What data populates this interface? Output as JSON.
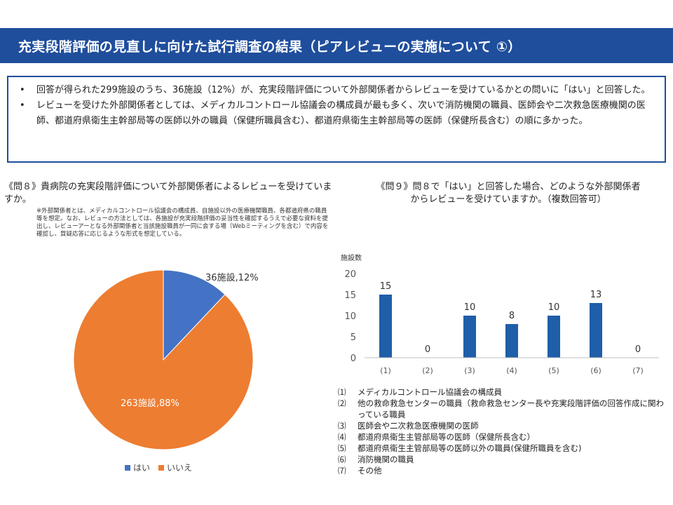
{
  "header": {
    "title": "充実段階評価の見直しに向けた試行調査の結果（ピアレビューの実施について ①）"
  },
  "summary": {
    "bullet": "•",
    "items": [
      "回答が得られた299施設のうち、36施設（12%）が、充実段階評価について外部関係者からレビューを受けているかとの問いに「はい」と回答した。",
      "レビューを受けた外部関係者としては、メディカルコントロール協議会の構成員が最も多く、次いで消防機関の職員、医師会や二次救急医療機関の医師、都道府県衛生主幹部局等の医師以外の職員（保健所職員含む）、都道府県衛生主幹部局等の医師（保健所長含む）の順に多かった。"
    ]
  },
  "q8": {
    "title": "《問８》貴病院の充実段階評価について外部関係者によるレビューを受けていますか。",
    "note": "※外部関係者とは、メディカルコントロール協議会の構成員、自施設以外の医療機関職員、各都道府県の職員等を想定。なお、レビューの方法としては、各施設が充実段階評価の妥当性を確認するうえで必要な資料を提出し、レビューアーとなる外部関係者と当該施設職員が一同に会する場（Webミーティングを含む）で内容を確認し、質疑応答に応じるような形式を想定している。"
  },
  "q9": {
    "title_line1": "《問９》問８で「はい」と回答した場合、どのような外部関係者",
    "title_line2": "からレビューを受けていますか。（複数回答可）",
    "legend": [
      {
        "num": "⑴",
        "text": "メディカルコントロール協議会の構成員"
      },
      {
        "num": "⑵",
        "text": "他の救命救急センターの職員（救命救急センター長や充実段階評価の回答作成に関わっている職員"
      },
      {
        "num": "⑶",
        "text": "医師会や二次救急医療機関の医師"
      },
      {
        "num": "⑷",
        "text": "都道府県衛生主管部局等の医師（保健所長含む）"
      },
      {
        "num": "⑸",
        "text": "都道府県衛生主管部局等の医師以外の職員(保健所職員を含む)"
      },
      {
        "num": "⑹",
        "text": "消防機関の職員"
      },
      {
        "num": "⑺",
        "text": "その他"
      }
    ]
  },
  "colors": {
    "header_bg": "#1f4e9c",
    "blue": "#4472c4",
    "orange": "#ed7d31",
    "bar": "#1f5ea8"
  },
  "chart_data": [
    {
      "type": "pie",
      "title": "",
      "slices": [
        {
          "label": "はい",
          "value": 36,
          "percent": 12,
          "data_label": "36施設,12%"
        },
        {
          "label": "いいえ",
          "value": 263,
          "percent": 88,
          "data_label": "263施設,88%"
        }
      ],
      "legend": [
        "はい",
        "いいえ"
      ],
      "legend_position": "bottom"
    },
    {
      "type": "bar",
      "title": "",
      "ylabel": "施設数",
      "xlabel": "",
      "categories": [
        "(1)",
        "(2)",
        "(3)",
        "(4)",
        "(5)",
        "(6)",
        "(7)"
      ],
      "values": [
        15,
        0,
        10,
        8,
        10,
        13,
        0
      ],
      "ylim": [
        0,
        20
      ],
      "yticks": [
        0,
        5,
        10,
        15,
        20
      ],
      "grid": false
    }
  ]
}
